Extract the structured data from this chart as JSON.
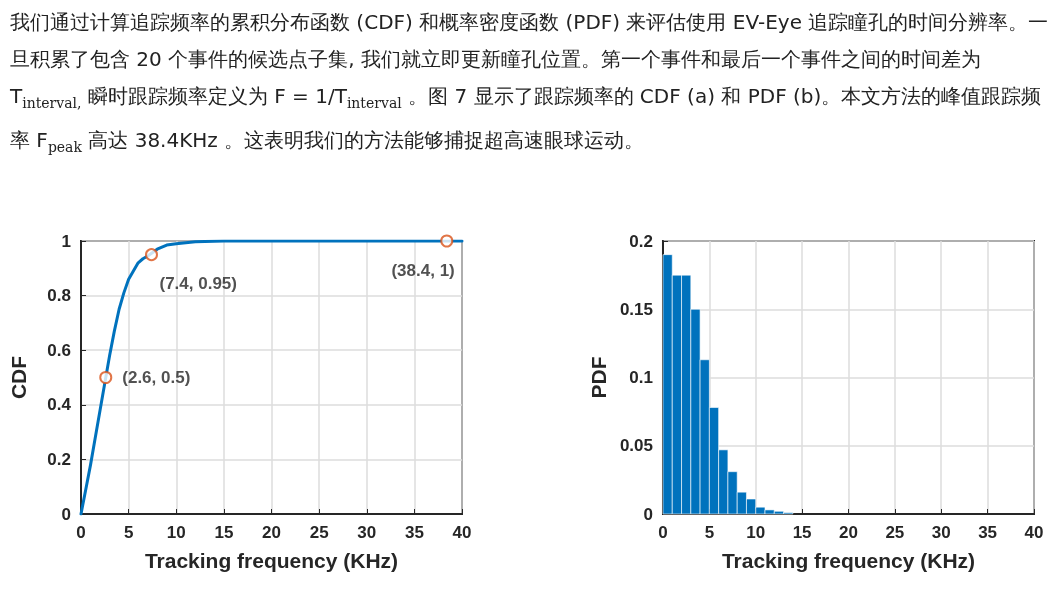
{
  "chart_data": [
    {
      "type": "other",
      "annotations": [
        "我们通过计算追踪频率的累积分布函数 (CDF) 和概率密度函数 (PDF) 来评估使用 EV-Eye 追踪瞳孔的时间分辨率。一旦积累了包含 20 个事件的候选点子集, 我们就立即更新瞳孔位置。第一个事件和最后一个事件之间的时间差为 T$_{interval,}$ 瞬时跟踪频率定义为 F = 1/T$_{interval}$ 。图 7 显示了跟踪频率的 CDF (a) 和 PDF (b)。本文方法的峰值跟踪频率 F$_{peak}$ 高达 38.4KHz 。这表明我们的方法能够捕捉超高速眼球运动。"
      ]
    },
    {
      "type": "line",
      "xlabel": "Tracking frequency (KHz)",
      "ylabel": "CDF",
      "xlim": [
        0,
        40
      ],
      "ylim": [
        0,
        1
      ],
      "xticks": [
        0,
        5,
        10,
        15,
        20,
        25,
        30,
        35,
        40
      ],
      "yticks": [
        0,
        0.2,
        0.4,
        0.6,
        0.8,
        1
      ],
      "grid": true,
      "series": [
        {
          "color": "#0072bd",
          "x": [
            0,
            0.5,
            1,
            1.5,
            2,
            3,
            3.5,
            4,
            4.5,
            5,
            5.5,
            6,
            6.5,
            7,
            8,
            9,
            10,
            12,
            15,
            20,
            30,
            40
          ],
          "values": [
            0,
            0.09,
            0.18,
            0.28,
            0.38,
            0.58,
            0.67,
            0.75,
            0.81,
            0.86,
            0.89,
            0.92,
            0.935,
            0.945,
            0.97,
            0.985,
            0.99,
            0.997,
            1,
            1,
            1,
            1
          ]
        },
        {
          "type": "scatter",
          "color": "#d95319",
          "marker": "circle",
          "x": [
            2.6,
            7.4,
            38.4
          ],
          "values": [
            0.5,
            0.95,
            1
          ],
          "value_labels": [
            "(2.6, 0.5)",
            "(7.4, 0.95)",
            "(38.4, 1)"
          ]
        }
      ]
    },
    {
      "type": "histogram",
      "xlabel": "Tracking frequency (KHz)",
      "ylabel": "PDF",
      "xlim": [
        0,
        40
      ],
      "ylim": [
        0,
        0.2
      ],
      "xticks": [
        0,
        5,
        10,
        15,
        20,
        25,
        30,
        35,
        40
      ],
      "yticks": [
        0,
        0.05,
        0.1,
        0.15,
        0.2
      ],
      "grid": true,
      "color": "#0072bd",
      "bins": [
        0,
        1,
        2,
        3,
        4,
        5,
        6,
        7,
        8,
        9,
        10,
        11,
        12,
        13,
        14
      ],
      "values": [
        0.19,
        0.175,
        0.175,
        0.15,
        0.113,
        0.078,
        0.047,
        0.031,
        0.016,
        0.011,
        0.005,
        0.003,
        0.002,
        0.001
      ]
    }
  ]
}
